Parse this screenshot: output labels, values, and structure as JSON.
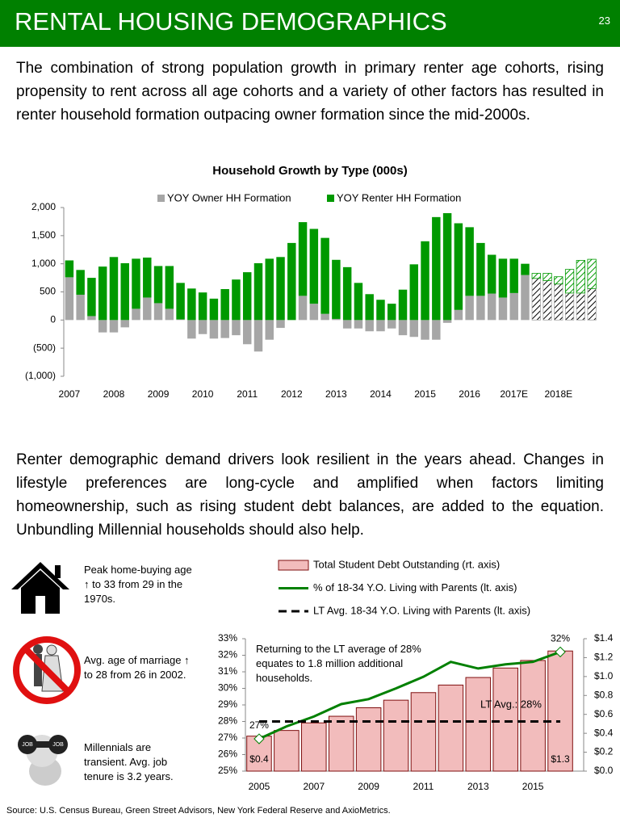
{
  "header": {
    "title": "RENTAL HOUSING DEMOGRAPHICS",
    "page_number": "23"
  },
  "paragraphs": [
    "The combination of strong population growth in primary renter age cohorts, rising propensity to rent across all age cohorts and a variety of other factors has resulted in renter household formation outpacing owner formation since the mid-2000s.",
    "Renter demographic demand drivers look resilient in the years ahead. Changes in lifestyle preferences are long-cycle and amplified when factors limiting homeownership, such as rising student debt balances, are added to the equation.  Unbundling Millennial households should also help."
  ],
  "facts": [
    "Peak home-buying age ↑ to 33 from 29 in the 1970s.",
    "Avg. age of marriage ↑ to 28 from 26 in 2002.",
    "Millennials are transient. Avg. job tenure is 3.2 years."
  ],
  "source": "Source:  U.S. Census Bureau, Green Street Advisors, New York Federal Reserve and AxioMetrics.",
  "chart_data": [
    {
      "type": "bar",
      "stacked": true,
      "title": "Household Growth by Type (000s)",
      "categories": [
        "2007",
        null,
        null,
        null,
        "2008",
        null,
        null,
        null,
        "2009",
        null,
        null,
        null,
        "2010",
        null,
        null,
        null,
        "2011",
        null,
        null,
        null,
        "2012",
        null,
        null,
        null,
        "2013",
        null,
        null,
        null,
        "2014",
        null,
        null,
        null,
        "2015",
        null,
        null,
        null,
        "2016",
        null,
        null,
        null,
        "2017E",
        null,
        null,
        null,
        "2018E",
        null,
        null,
        null
      ],
      "hatched": [
        false,
        false,
        false,
        false,
        false,
        false,
        false,
        false,
        false,
        false,
        false,
        false,
        false,
        false,
        false,
        false,
        false,
        false,
        false,
        false,
        false,
        false,
        false,
        false,
        false,
        false,
        false,
        false,
        false,
        false,
        false,
        false,
        false,
        false,
        false,
        false,
        false,
        false,
        false,
        false,
        false,
        false,
        true,
        true,
        true,
        true,
        true,
        true
      ],
      "series": [
        {
          "name": "YOY Owner HH Formation",
          "color": "#a6a6a6",
          "values": [
            760,
            450,
            70,
            -220,
            -220,
            -130,
            200,
            400,
            300,
            200,
            10,
            -330,
            -250,
            -330,
            -320,
            -270,
            -430,
            -560,
            -350,
            -140,
            0,
            430,
            290,
            110,
            20,
            -150,
            -150,
            -200,
            -200,
            -150,
            -270,
            -300,
            -350,
            -350,
            -50,
            180,
            430,
            430,
            470,
            400,
            480,
            800,
            740,
            700,
            640,
            480,
            480,
            560
          ]
        },
        {
          "name": "YOY Renter HH Formation",
          "color": "#009900",
          "values": [
            300,
            440,
            680,
            950,
            1120,
            1010,
            890,
            710,
            660,
            760,
            650,
            560,
            490,
            380,
            550,
            720,
            850,
            1010,
            1090,
            1120,
            1370,
            1310,
            1330,
            1350,
            1050,
            940,
            660,
            460,
            360,
            290,
            540,
            990,
            1400,
            1830,
            1900,
            1540,
            1220,
            940,
            690,
            690,
            610,
            200,
            90,
            130,
            130,
            420,
            580,
            520
          ]
        }
      ],
      "ylim": [
        -1000,
        2000
      ],
      "yticks": [
        {
          "value": -1000,
          "label": "(1,000)"
        },
        {
          "value": -500,
          "label": "(500)"
        },
        0,
        500,
        {
          "value": 1000,
          "label": "1,000"
        },
        {
          "value": 1500,
          "label": "1,500"
        },
        {
          "value": 2000,
          "label": "2,000"
        }
      ],
      "negative_tick_color": "#c00000",
      "legend": "top",
      "grid": false
    },
    {
      "type": "combo",
      "categories": [
        "2005",
        null,
        "2007",
        null,
        "2009",
        null,
        "2011",
        null,
        "2013",
        null,
        "2015",
        null
      ],
      "series": [
        {
          "name": "Total Student Debt Outstanding (rt. axis)",
          "type": "bar",
          "axis": "y2",
          "color": "#f2bcbc",
          "edge_color": "#7f1010",
          "values": [
            0.37,
            0.43,
            0.51,
            0.58,
            0.67,
            0.75,
            0.83,
            0.91,
            0.99,
            1.09,
            1.17,
            1.27
          ],
          "value_labels": [
            "$0.4",
            null,
            null,
            null,
            null,
            null,
            null,
            null,
            null,
            null,
            null,
            "$1.3"
          ]
        },
        {
          "name": "% of 18-34 Y.O. Living with Parents (lt. axis)",
          "type": "line",
          "color": "#008000",
          "values": [
            26.95,
            27.7,
            28.3,
            29.05,
            29.35,
            30.0,
            30.7,
            31.6,
            31.2,
            31.45,
            31.6,
            32.2
          ],
          "value_labels": [
            "27%",
            null,
            null,
            null,
            null,
            null,
            null,
            null,
            null,
            null,
            null,
            "32%"
          ]
        },
        {
          "name": "LT Avg. 18-34 Y.O. Living with Parents (lt. axis)",
          "type": "line",
          "dashed": true,
          "color": "#000000",
          "values": [
            28,
            28,
            28,
            28,
            28,
            28,
            28,
            28,
            28,
            28,
            28,
            28
          ]
        }
      ],
      "annotations": [
        "Returning to the LT average of 28% equates to 1.8 million additional households.",
        "LT Avg.: 28%"
      ],
      "ylim": [
        25,
        33
      ],
      "yticks": [
        {
          "value": 25,
          "label": "25%"
        },
        {
          "value": 26,
          "label": "26%"
        },
        {
          "value": 27,
          "label": "27%"
        },
        {
          "value": 28,
          "label": "28%"
        },
        {
          "value": 29,
          "label": "29%"
        },
        {
          "value": 30,
          "label": "30%"
        },
        {
          "value": 31,
          "label": "31%"
        },
        {
          "value": 32,
          "label": "32%"
        },
        {
          "value": 33,
          "label": "33%"
        }
      ],
      "y2lim": [
        0,
        1.4
      ],
      "y2ticks": [
        {
          "value": 0,
          "label": "$0.0"
        },
        {
          "value": 0.2,
          "label": "$0.2"
        },
        {
          "value": 0.4,
          "label": "$0.4"
        },
        {
          "value": 0.6,
          "label": "$0.6"
        },
        {
          "value": 0.8,
          "label": "$0.8"
        },
        {
          "value": 1,
          "label": "$1.0"
        },
        {
          "value": 1.2,
          "label": "$1.2"
        },
        {
          "value": 1.4,
          "label": "$1.4"
        }
      ],
      "legend": "top",
      "grid": false
    }
  ]
}
